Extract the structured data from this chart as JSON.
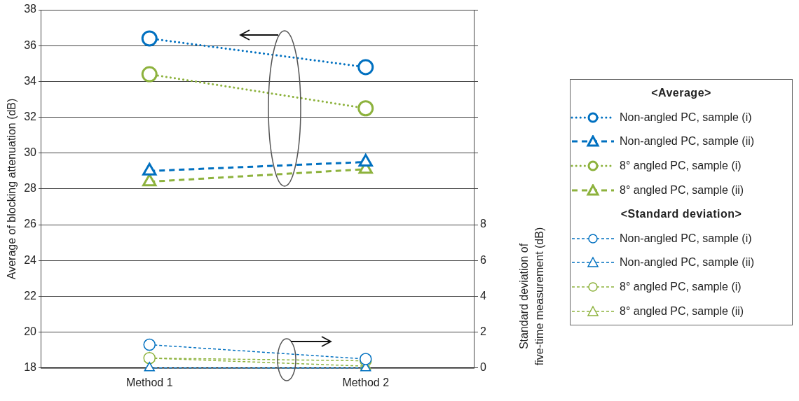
{
  "chart_data": {
    "type": "line",
    "categories": [
      "Method 1",
      "Method 2"
    ],
    "ylabel": "Average of blocking attenuation (dB)",
    "y2label": "Standard deviation of five-time measurement (dB)",
    "ylim": [
      18,
      38
    ],
    "yticks": [
      18,
      20,
      22,
      24,
      26,
      28,
      30,
      32,
      34,
      36,
      38
    ],
    "y2lim": [
      0,
      20
    ],
    "y2ticks": [
      0,
      2,
      4,
      6,
      8,
      {
        "value": 10,
        "label": null
      },
      {
        "value": 12,
        "label": null
      },
      {
        "value": 14,
        "label": null
      },
      {
        "value": 16,
        "label": null
      },
      {
        "value": 18,
        "label": null
      },
      {
        "value": 20,
        "label": null
      }
    ],
    "grid": "y",
    "legend": "right",
    "legend_title": "<Average>",
    "annotations": [
      "<Standard deviation>"
    ],
    "series": [
      {
        "name": "Non-angled PC, sample (i)",
        "color": "#0070c0",
        "values": [
          36.4,
          34.8
        ],
        "marker": "circle",
        "line_style": "dotted"
      },
      {
        "name": "Non-angled PC, sample (ii)",
        "color": "#0070c0",
        "values": [
          29.0,
          29.5
        ],
        "marker": "triangle",
        "line_style": "dashed"
      },
      {
        "name": "8° angled PC, sample (i)",
        "color": "#8db23d",
        "values": [
          34.4,
          32.5
        ],
        "marker": "circle",
        "line_style": "dotted"
      },
      {
        "name": "8° angled PC, sample (ii)",
        "color": "#8db23d",
        "values": [
          28.4,
          29.1
        ],
        "marker": "triangle",
        "line_style": "dashed"
      },
      {
        "name": "Non-angled PC, sample (i)",
        "color": "#0070c0",
        "values": [
          1.3,
          0.5
        ],
        "marker": "circle",
        "line_style": "dashed",
        "axis": "y2"
      },
      {
        "name": "Non-angled PC, sample (ii)",
        "color": "#0070c0",
        "values": [
          0,
          0
        ],
        "marker": "triangle",
        "line_style": "dashed",
        "axis": "y2"
      },
      {
        "name": "8° angled PC, sample (i)",
        "color": "#8db23d",
        "values": [
          0.55,
          0.4
        ],
        "marker": "circle",
        "line_style": "dashed",
        "axis": "y2"
      },
      {
        "name": "8° angled PC, sample (ii)",
        "color": "#8db23d",
        "values": [
          0.55,
          0.1
        ],
        "marker": "triangle",
        "line_style": "dashed",
        "axis": "y2"
      }
    ]
  }
}
